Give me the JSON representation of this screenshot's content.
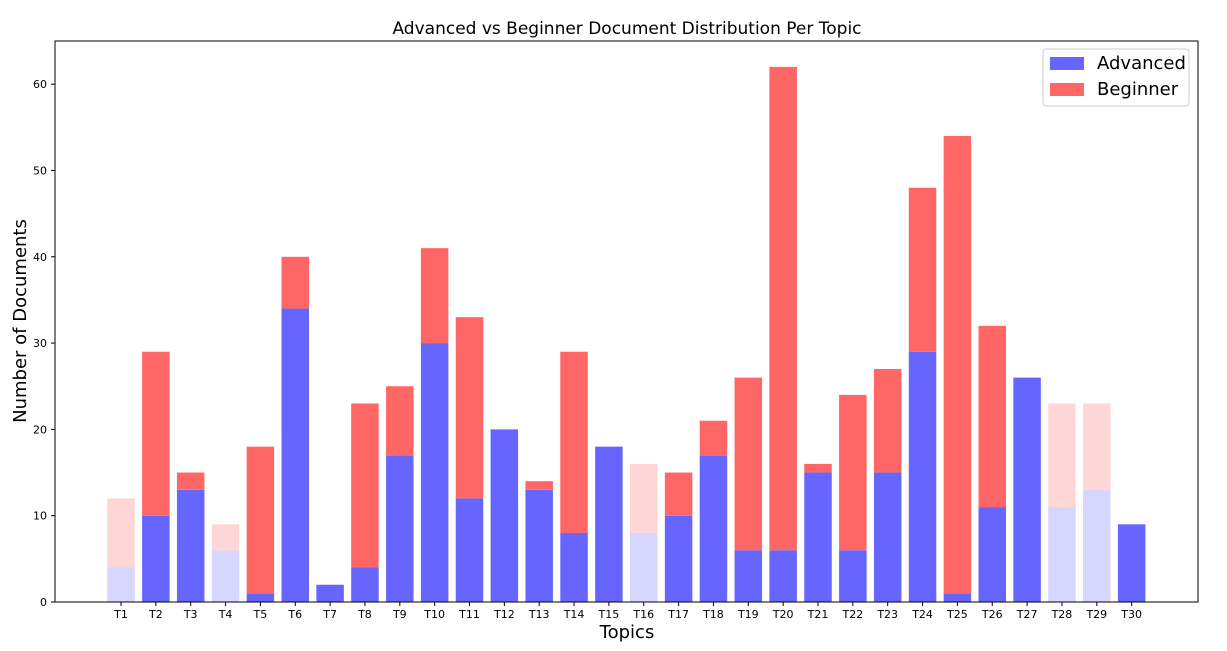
{
  "chart_data": {
    "type": "bar",
    "stacked": true,
    "title": "Advanced vs Beginner Document Distribution Per Topic",
    "xlabel": "Topics",
    "ylabel": "Number of Documents",
    "ylim": [
      0,
      65
    ],
    "yticks": [
      0,
      10,
      20,
      30,
      40,
      50,
      60
    ],
    "grid": false,
    "legend_position": "top-right",
    "categories": [
      "T1",
      "T2",
      "T3",
      "T4",
      "T5",
      "T6",
      "T7",
      "T8",
      "T9",
      "T10",
      "T11",
      "T12",
      "T13",
      "T14",
      "T15",
      "T16",
      "T17",
      "T18",
      "T19",
      "T20",
      "T21",
      "T22",
      "T23",
      "T24",
      "T25",
      "T26",
      "T27",
      "T28",
      "T29",
      "T30"
    ],
    "faded_categories": [
      "T1",
      "T4",
      "T16",
      "T28",
      "T29"
    ],
    "series": [
      {
        "name": "Advanced",
        "color": "#6666ff",
        "faded_color": "#d6d6ff",
        "values": [
          4,
          10,
          13,
          6,
          1,
          34,
          2,
          4,
          17,
          30,
          12,
          20,
          13,
          8,
          18,
          8,
          10,
          17,
          6,
          6,
          15,
          6,
          15,
          29,
          1,
          11,
          26,
          11,
          13,
          9
        ]
      },
      {
        "name": "Beginner",
        "color": "#ff6666",
        "faded_color": "#ffd6d6",
        "values": [
          8,
          19,
          2,
          3,
          17,
          6,
          0,
          19,
          8,
          11,
          21,
          0,
          1,
          21,
          0,
          8,
          5,
          4,
          20,
          56,
          1,
          18,
          12,
          19,
          53,
          21,
          0,
          12,
          10,
          0
        ]
      }
    ]
  }
}
